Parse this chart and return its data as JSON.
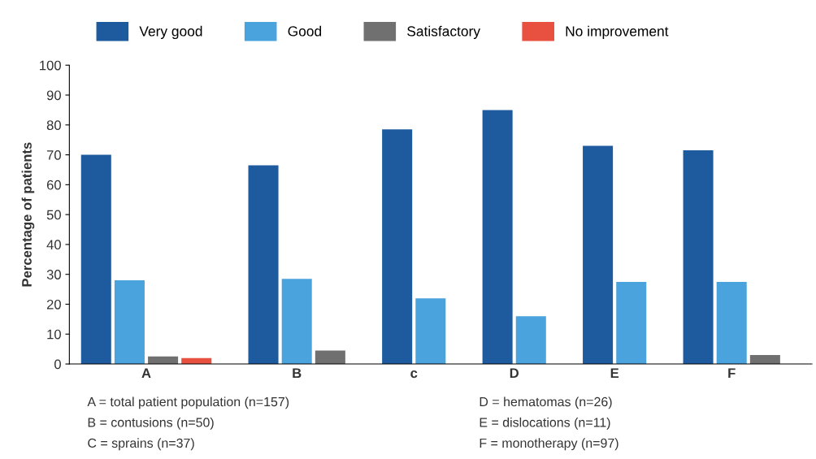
{
  "chart_data": {
    "type": "bar",
    "ylabel": "Percentage of patients",
    "categories": [
      "A",
      "B",
      "c",
      "D",
      "E",
      "F"
    ],
    "series": [
      {
        "name": "Very good",
        "color": "#1d5a9e",
        "values": [
          70,
          66.5,
          78.5,
          85,
          73,
          71.5
        ]
      },
      {
        "name": "Good",
        "color": "#4aa3dc",
        "values": [
          28,
          28.5,
          22,
          16,
          27.5,
          27.5
        ]
      },
      {
        "name": "Satisfactory",
        "color": "#707070",
        "values": [
          2.5,
          4.5,
          null,
          null,
          null,
          3
        ]
      },
      {
        "name": "No improvement",
        "color": "#e8503f",
        "values": [
          2,
          null,
          null,
          null,
          null,
          null
        ]
      }
    ],
    "ylim": [
      0,
      100
    ],
    "yticks": [
      0,
      10,
      20,
      30,
      40,
      50,
      60,
      70,
      80,
      90,
      100
    ],
    "grid": false,
    "legend": "top left",
    "annotations": [
      "A = total patient population (n=157)",
      "B = contusions (n=50)",
      "C = sprains (n=37)",
      "D = hematomas (n=26)",
      "E = dislocations (n=11)",
      "F = monotherapy (n=97)"
    ]
  }
}
